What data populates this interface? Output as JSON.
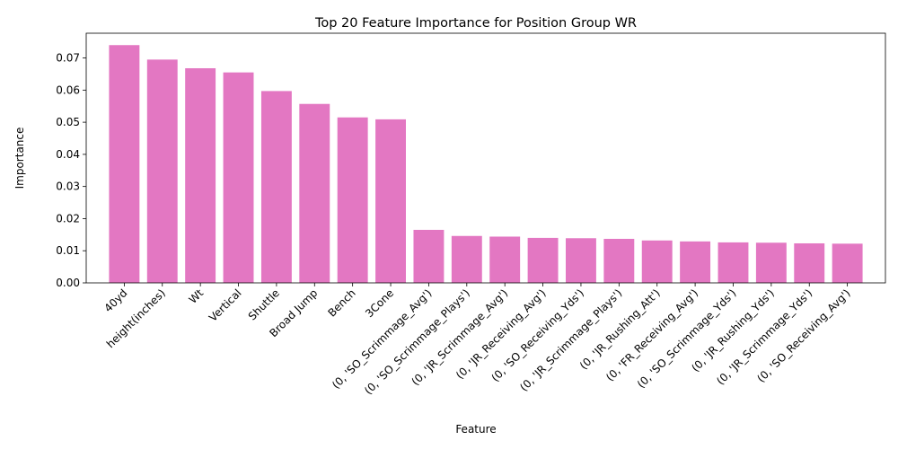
{
  "chart_data": {
    "type": "bar",
    "title": "Top 20 Feature Importance for Position Group WR",
    "xlabel": "Feature",
    "ylabel": "Importance",
    "ylim": [
      0,
      0.0777
    ],
    "yticks": [
      "0.00",
      "0.01",
      "0.02",
      "0.03",
      "0.04",
      "0.05",
      "0.06",
      "0.07"
    ],
    "bar_color": "#e377c2",
    "grid": false,
    "categories": [
      "40yd",
      "height(inches)",
      "Wt",
      "Vertical",
      "Shuttle",
      "Broad Jump",
      "Bench",
      "3Cone",
      "(0, 'SO_Scrimmage_Avg')",
      "(0, 'SO_Scrimmage_Plays')",
      "(0, 'JR_Scrimmage_Avg')",
      "(0, 'JR_Receiving_Avg')",
      "(0, 'SO_Receiving_Yds')",
      "(0, 'JR_Scrimmage_Plays')",
      "(0, 'JR_Rushing_Att')",
      "(0, 'FR_Receiving_Avg')",
      "(0, 'SO_Scrimmage_Yds')",
      "(0, 'JR_Rushing_Yds')",
      "(0, 'JR_Scrimmage_Yds')",
      "(0, 'SO_Receiving_Avg')"
    ],
    "values": [
      0.074,
      0.0695,
      0.0668,
      0.0655,
      0.0597,
      0.0557,
      0.0515,
      0.0509,
      0.0165,
      0.0146,
      0.0144,
      0.014,
      0.0139,
      0.0137,
      0.0132,
      0.0129,
      0.0126,
      0.0125,
      0.0123,
      0.0122
    ]
  }
}
